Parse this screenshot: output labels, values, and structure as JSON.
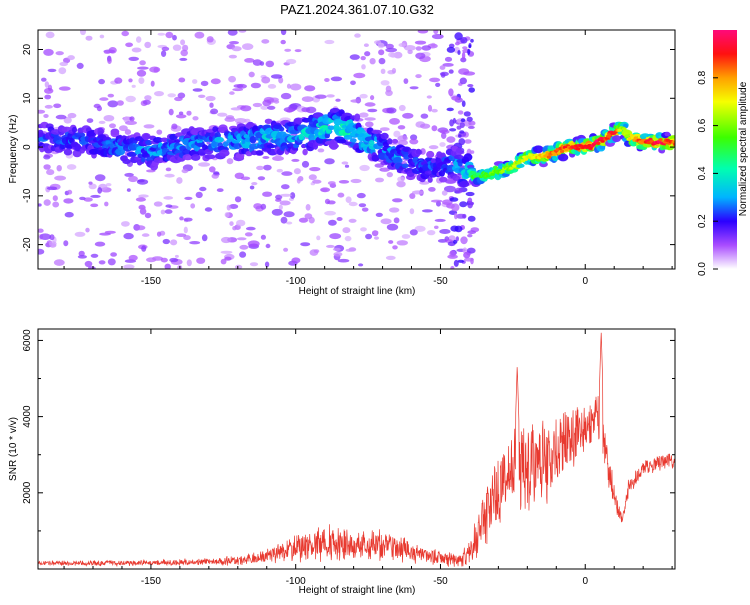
{
  "title": "PAZ1.2024.361.07.10.G32",
  "colors": {
    "snr_line": "#e8392f",
    "frame": "#000000"
  },
  "chart_data": [
    {
      "type": "heatmap",
      "xlabel": "Height of straight line (km)",
      "ylabel": "Frequency (Hz)",
      "xlim": [
        -189,
        31
      ],
      "ylim": [
        -25,
        24
      ],
      "xticks": [
        -150,
        -100,
        -50,
        0
      ],
      "yticks": [
        -20,
        -10,
        0,
        10,
        20
      ],
      "colorbar": {
        "label": "Normalized spectral amplitude",
        "range": [
          0,
          1
        ],
        "ticks": [
          "0.0",
          "0.2",
          "0.4",
          "0.6",
          "0.8"
        ],
        "colormap": "rainbow"
      },
      "ridge": {
        "x": [
          -187,
          -170,
          -160,
          -150,
          -140,
          -130,
          -120,
          -110,
          -100,
          -95,
          -90,
          -85,
          -80,
          -75,
          -70,
          -65,
          -60,
          -55,
          -50,
          -45,
          -42,
          -40,
          -38,
          -35,
          -30,
          -25,
          -20,
          -15,
          -10,
          -5,
          0,
          5,
          10,
          13,
          15,
          20,
          25,
          30
        ],
        "y": [
          2,
          1,
          0,
          -1,
          0,
          1,
          1,
          2,
          2,
          3,
          4,
          4,
          3,
          1,
          0,
          -2,
          -3,
          -4,
          -4,
          -3,
          -5,
          -5,
          -6,
          -6,
          -5,
          -4,
          -2,
          -2,
          -1,
          0,
          0,
          1,
          3,
          4,
          2,
          1,
          1,
          1
        ],
        "strength": [
          0.25,
          0.25,
          0.28,
          0.3,
          0.3,
          0.3,
          0.32,
          0.35,
          0.35,
          0.38,
          0.42,
          0.45,
          0.4,
          0.35,
          0.3,
          0.3,
          0.28,
          0.26,
          0.25,
          0.3,
          0.35,
          0.45,
          0.5,
          0.55,
          0.6,
          0.65,
          0.72,
          0.78,
          0.85,
          0.9,
          0.95,
          0.97,
          0.9,
          0.6,
          0.7,
          0.9,
          0.95,
          0.9
        ]
      }
    },
    {
      "type": "line",
      "xlabel": "Height of straight line (km)",
      "ylabel": "SNR (10 * v/v)",
      "xlim": [
        -189,
        31
      ],
      "ylim": [
        0,
        6300
      ],
      "xticks": [
        -150,
        -100,
        -50,
        0
      ],
      "yticks": [
        2000,
        4000,
        6000
      ],
      "envelope": {
        "x": [
          -189,
          -150,
          -130,
          -120,
          -110,
          -100,
          -95,
          -90,
          -85,
          -80,
          -75,
          -70,
          -65,
          -60,
          -55,
          -50,
          -45,
          -40,
          -38,
          -35,
          -32,
          -30,
          -28,
          -25,
          -22,
          -20,
          -15,
          -10,
          -5,
          0,
          3,
          5,
          6,
          8,
          10,
          12,
          13,
          15,
          20,
          25,
          31
        ],
        "mean": [
          150,
          160,
          190,
          230,
          350,
          520,
          650,
          700,
          650,
          600,
          620,
          580,
          520,
          440,
          350,
          280,
          250,
          400,
          700,
          1300,
          1900,
          2200,
          2500,
          2700,
          2800,
          2600,
          2900,
          3100,
          3400,
          3700,
          3900,
          4000,
          3500,
          2600,
          2000,
          1400,
          1300,
          2200,
          2600,
          2800,
          2850
        ],
        "noise": [
          60,
          70,
          90,
          120,
          200,
          350,
          420,
          450,
          420,
          400,
          400,
          380,
          340,
          280,
          220,
          180,
          200,
          350,
          500,
          700,
          900,
          1000,
          1100,
          1300,
          1300,
          1200,
          1100,
          1000,
          900,
          600,
          500,
          700,
          500,
          450,
          350,
          200,
          150,
          250,
          250,
          200,
          200
        ]
      },
      "peaks": [
        {
          "x": -23.5,
          "y": 5350
        },
        {
          "x": 5.5,
          "y": 6250
        }
      ]
    }
  ]
}
